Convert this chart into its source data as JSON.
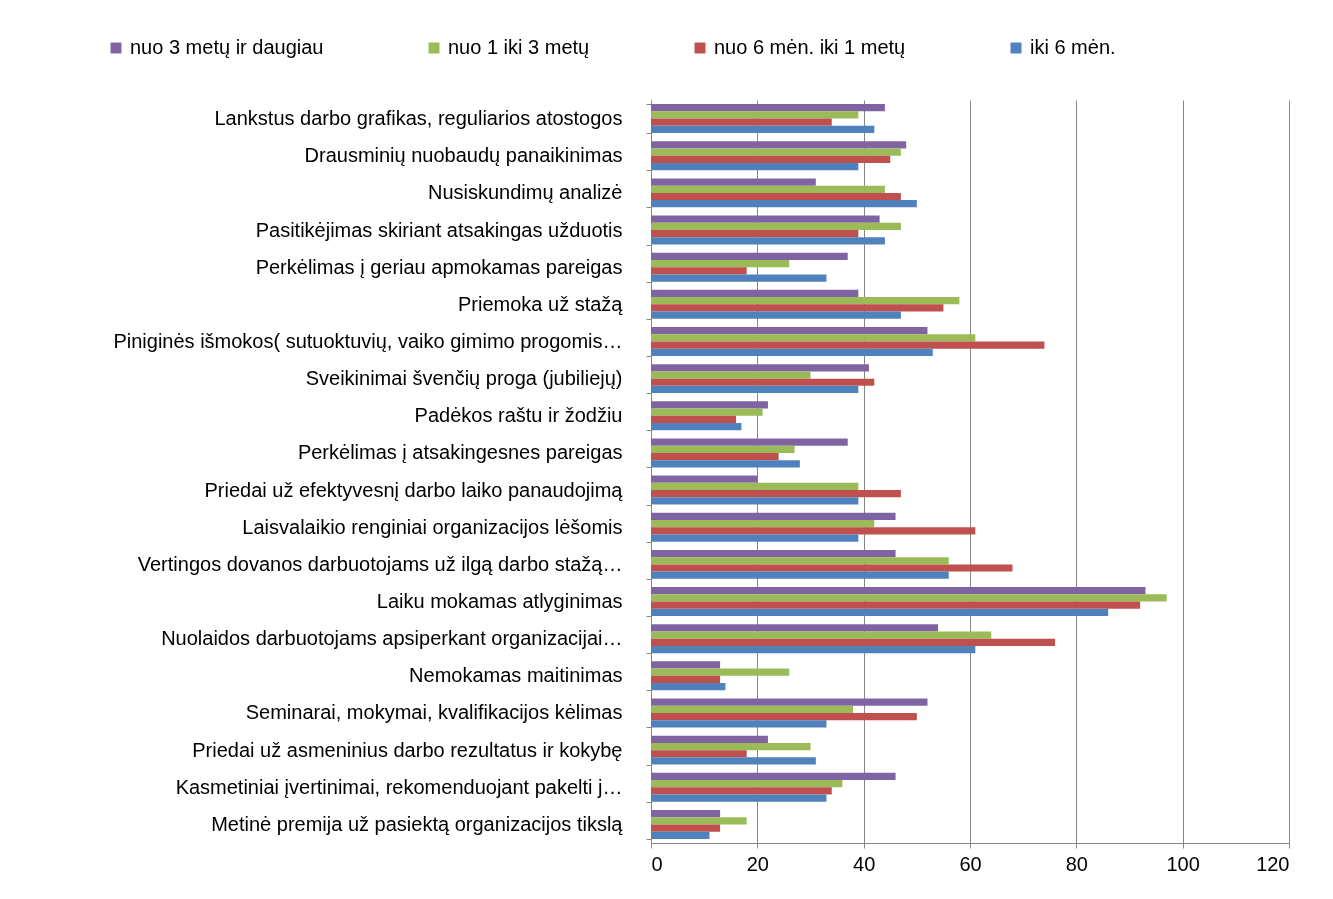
{
  "chart_data": {
    "type": "bar",
    "orientation": "horizontal",
    "categories": [
      "Lankstus darbo grafikas, reguliarios atostogos",
      "Drausminių nuobaudų panaikinimas",
      "Nusiskundimų analizė",
      "Pasitikėjimas skiriant atsakingas užduotis",
      "Perkėlimas į geriau apmokamas pareigas",
      "Priemoka už stažą",
      "Piniginės išmokos( sutuoktuvių, vaiko gimimo progomis…",
      "Sveikinimai švenčių proga (jubiliejų)",
      "Padėkos raštu ir žodžiu",
      "Perkėlimas į atsakingesnes pareigas",
      "Priedai už efektyvesnį darbo laiko panaudojimą",
      "Laisvalaikio renginiai organizacijos lėšomis",
      "Vertingos dovanos darbuotojams už ilgą darbo stažą…",
      "Laiku mokamas atlyginimas",
      "Nuolaidos darbuotojams apsiperkant organizacijai…",
      "Nemokamas maitinimas",
      "Seminarai, mokymai, kvalifikacijos kėlimas",
      "Priedai už asmeninius darbo rezultatus ir kokybę",
      "Kasmetiniai įvertinimai, rekomenduojant pakelti j…",
      "Metinė premija už pasiektą organizacijos tikslą"
    ],
    "series": [
      {
        "name": "nuo 3 metų ir daugiau",
        "color": "#8064a2",
        "values": [
          44,
          48,
          31,
          43,
          37,
          39,
          52,
          41,
          22,
          37,
          20,
          46,
          46,
          93,
          54,
          13,
          52,
          22,
          46,
          13
        ]
      },
      {
        "name": "nuo 1 iki 3 metų",
        "color": "#9bbb59",
        "values": [
          39,
          47,
          44,
          47,
          26,
          58,
          61,
          30,
          21,
          27,
          39,
          42,
          56,
          97,
          64,
          26,
          38,
          30,
          36,
          18
        ]
      },
      {
        "name": "nuo 6 mėn. iki 1 metų",
        "color": "#c0504d",
        "values": [
          34,
          45,
          47,
          39,
          18,
          55,
          74,
          42,
          16,
          24,
          47,
          61,
          68,
          92,
          76,
          13,
          50,
          18,
          34,
          13
        ]
      },
      {
        "name": "iki 6 mėn.",
        "color": "#4f81bd",
        "values": [
          42,
          39,
          50,
          44,
          33,
          47,
          53,
          39,
          17,
          28,
          39,
          39,
          56,
          86,
          61,
          14,
          33,
          31,
          33,
          11
        ]
      }
    ],
    "xlim": [
      0,
      120
    ],
    "xticks": [
      0,
      20,
      40,
      60,
      80,
      100,
      120
    ],
    "grid": "x",
    "legend": "top"
  }
}
